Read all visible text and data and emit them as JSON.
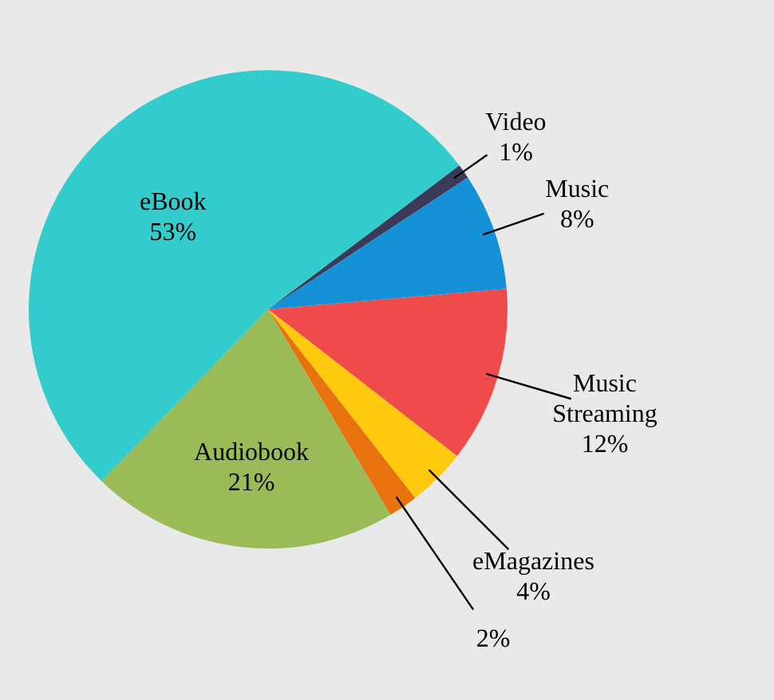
{
  "chart_data": {
    "type": "pie",
    "categories": [
      "Video",
      "Music",
      "Music Streaming",
      "eMagazines",
      null,
      "Audiobook",
      "eBook"
    ],
    "values": [
      1,
      8,
      12,
      4,
      2,
      21,
      53
    ],
    "colors": [
      "#3b3a5a",
      "#1591d8",
      "#ef4b4b",
      "#ffc90e",
      "#e8720e",
      "#9bbb59",
      "#33cccc"
    ],
    "value_labels": [
      "1%",
      "8%",
      "12%",
      "4%",
      "2%",
      "21%",
      "53%"
    ]
  }
}
